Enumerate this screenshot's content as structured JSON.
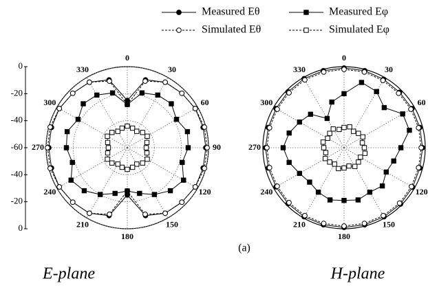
{
  "figure_label": "(a)",
  "chart_data": [
    {
      "type": "polar",
      "title": "E-plane",
      "x": [
        0,
        15,
        30,
        45,
        60,
        75,
        90,
        105,
        120,
        135,
        150,
        165,
        180,
        195,
        210,
        225,
        240,
        255,
        270,
        285,
        300,
        315,
        330,
        345
      ],
      "rlim": [
        -60,
        0
      ],
      "rticks": [
        0,
        -20,
        -40,
        -60
      ],
      "thetaticks": [
        0,
        30,
        60,
        90,
        120,
        150,
        180,
        210,
        240,
        270,
        300,
        330
      ],
      "series": [
        {
          "name": "Measured Eθ",
          "color": "#000000",
          "marker": "circle",
          "filled": true,
          "dashed": false,
          "values": [
            -25,
            -8,
            -4,
            -3,
            -2,
            -2,
            -2,
            -2,
            -2,
            -3,
            -4,
            -8,
            -25,
            -8,
            -4,
            -3,
            -2,
            -2,
            -2,
            -2,
            -2,
            -3,
            -4,
            -8
          ]
        },
        {
          "name": "Simulated Eθ",
          "color": "#000000",
          "marker": "circle",
          "filled": false,
          "dashed": true,
          "values": [
            -28,
            -9,
            -4,
            -3,
            -2,
            -1,
            -1,
            -1,
            -2,
            -3,
            -4,
            -9,
            -28,
            -9,
            -4,
            -3,
            -2,
            -1,
            -1,
            -1,
            -2,
            -3,
            -4,
            -9
          ]
        },
        {
          "name": "Measured Eφ",
          "color": "#000000",
          "marker": "square",
          "filled": true,
          "dashed": false,
          "values": [
            -28,
            -18,
            -15,
            -14,
            -18,
            -14,
            -15,
            -18,
            -12,
            -15,
            -20,
            -25,
            -28,
            -25,
            -20,
            -15,
            -12,
            -18,
            -15,
            -14,
            -18,
            -14,
            -15,
            -18
          ]
        },
        {
          "name": "Simulated Eφ",
          "color": "#000000",
          "marker": "square",
          "filled": false,
          "dashed": true,
          "values": [
            -44,
            -45,
            -46,
            -44,
            -43,
            -45,
            -46,
            -45,
            -43,
            -44,
            -46,
            -45,
            -44,
            -45,
            -46,
            -44,
            -43,
            -45,
            -46,
            -45,
            -43,
            -44,
            -46,
            -45
          ]
        }
      ]
    },
    {
      "type": "polar",
      "title": "H-plane",
      "x": [
        0,
        15,
        30,
        45,
        60,
        75,
        90,
        105,
        120,
        135,
        150,
        165,
        180,
        195,
        210,
        225,
        240,
        255,
        270,
        285,
        300,
        315,
        330,
        345
      ],
      "rlim": [
        -60,
        0
      ],
      "thetaticks": [
        0,
        30,
        60,
        90,
        120,
        150,
        180,
        210,
        240,
        270,
        300,
        330
      ],
      "series": [
        {
          "name": "Measured Eθ",
          "color": "#000000",
          "marker": "circle",
          "filled": true,
          "dashed": false,
          "values": [
            -1,
            -1,
            -1.5,
            -2,
            -2,
            -2,
            -2,
            -2,
            -1.5,
            -1,
            -1,
            -1,
            -1,
            -1,
            -1,
            -1.5,
            -2,
            -2,
            -2,
            -2,
            -2,
            -1.5,
            -1,
            -1
          ]
        },
        {
          "name": "Simulated Eθ",
          "color": "#000000",
          "marker": "circle",
          "filled": false,
          "dashed": true,
          "values": [
            -2,
            -2,
            -2.5,
            -3,
            -3,
            -3,
            -3,
            -3,
            -2.5,
            -2,
            -2,
            -2,
            -2,
            -2,
            -2,
            -2.5,
            -3,
            -3,
            -3,
            -3,
            -3,
            -2.5,
            -2,
            -2
          ]
        },
        {
          "name": "Measured Eφ",
          "color": "#000000",
          "marker": "square",
          "filled": true,
          "dashed": false,
          "values": [
            -20,
            -10,
            -12,
            -18,
            -10,
            -10,
            -18,
            -22,
            -24,
            -20,
            -22,
            -20,
            -21,
            -20,
            -22,
            -24,
            -22,
            -18,
            -15,
            -18,
            -22,
            -25,
            -35,
            -25
          ]
        },
        {
          "name": "Simulated Eφ",
          "color": "#000000",
          "marker": "square",
          "filled": false,
          "dashed": true,
          "values": [
            -45,
            -44,
            -46,
            -45,
            -44,
            -46,
            -45,
            -44,
            -46,
            -45,
            -44,
            -46,
            -45,
            -44,
            -46,
            -45,
            -44,
            -46,
            -45,
            -44,
            -46,
            -45,
            -44,
            -46
          ]
        }
      ]
    }
  ]
}
